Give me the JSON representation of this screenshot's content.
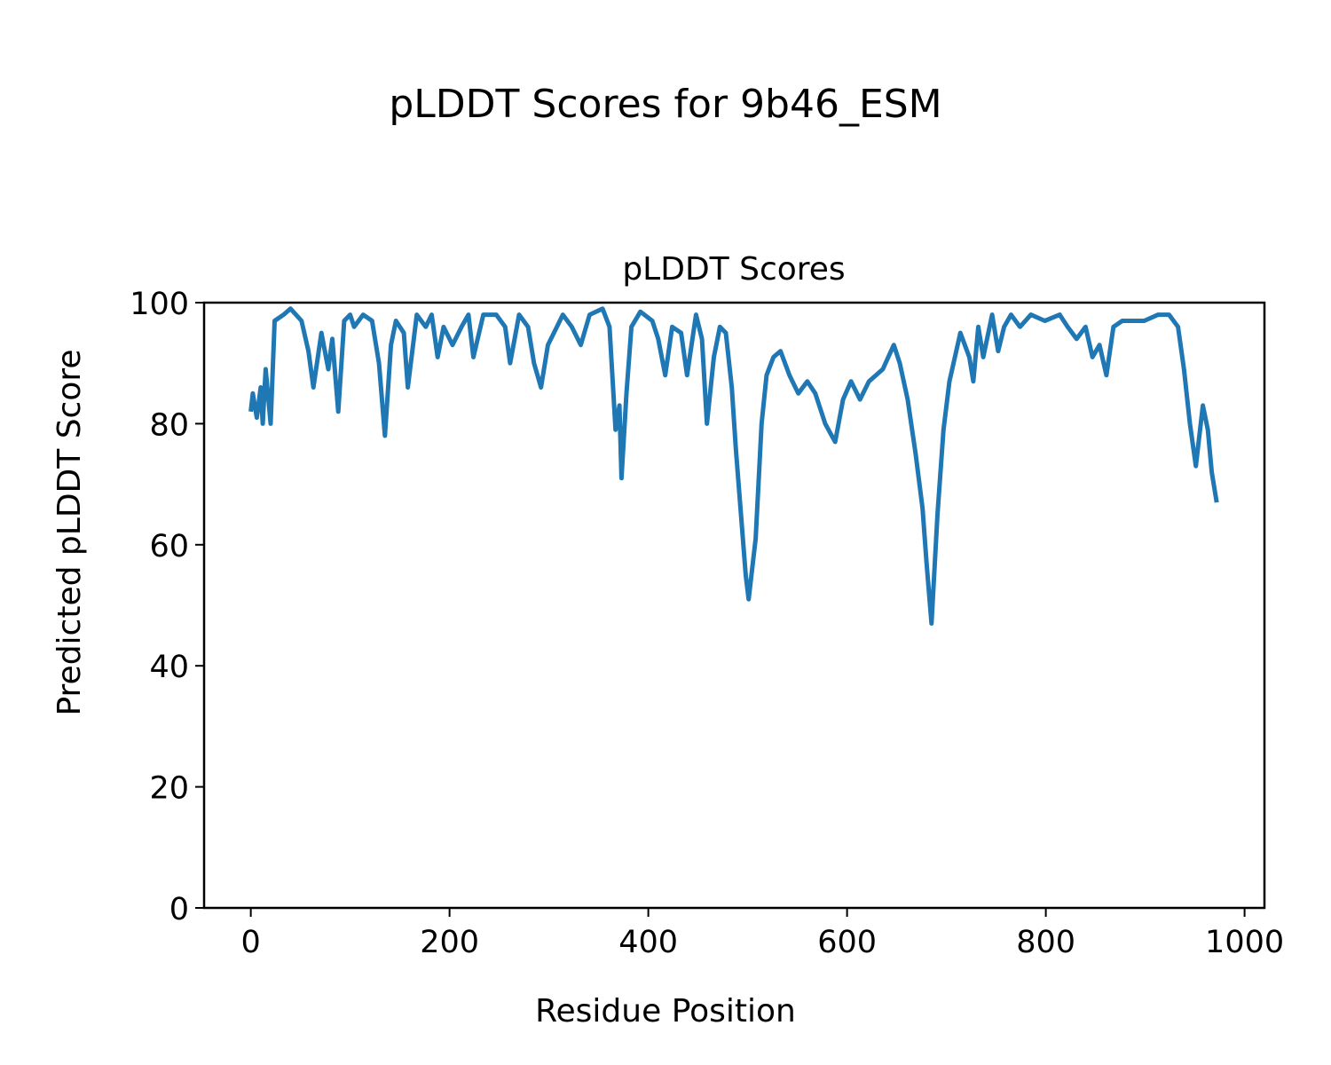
{
  "figure_title": "pLDDT Scores for 9b46_ESM",
  "chart_data": {
    "type": "line",
    "title": "pLDDT Scores",
    "xlabel": "Residue Position",
    "ylabel": "Predicted pLDDT Score",
    "xlim": [
      -47,
      1020
    ],
    "ylim": [
      0,
      100
    ],
    "xticks": [
      0,
      200,
      400,
      600,
      800,
      1000
    ],
    "yticks": [
      0,
      20,
      40,
      60,
      80,
      100
    ],
    "grid": false,
    "series": [
      {
        "name": "pLDDT",
        "color": "#1f77b4",
        "x": [
          0,
          2,
          6,
          10,
          12,
          15,
          20,
          24,
          33,
          40,
          51,
          58,
          63,
          71,
          78,
          82,
          88,
          94,
          100,
          104,
          113,
          122,
          129,
          135,
          141,
          146,
          154,
          158,
          167,
          176,
          182,
          188,
          194,
          203,
          212,
          219,
          224,
          234,
          247,
          256,
          261,
          270,
          279,
          285,
          292,
          299,
          308,
          314,
          323,
          332,
          341,
          354,
          361,
          367,
          371,
          373,
          378,
          383,
          392,
          404,
          410,
          417,
          424,
          433,
          439,
          448,
          454,
          459,
          466,
          472,
          478,
          484,
          488,
          498,
          501,
          508,
          514,
          519,
          526,
          533,
          542,
          551,
          560,
          568,
          578,
          588,
          596,
          604,
          613,
          622,
          636,
          647,
          653,
          661,
          669,
          676,
          680,
          685,
          691,
          697,
          703,
          714,
          723,
          727,
          732,
          737,
          746,
          752,
          758,
          765,
          774,
          785,
          799,
          814,
          822,
          831,
          840,
          847,
          854,
          861,
          868,
          877,
          886,
          899,
          913,
          924,
          933,
          939,
          945,
          951,
          958,
          963,
          967,
          972
        ],
        "y": [
          82,
          85,
          81,
          86,
          80,
          89,
          80,
          97,
          98,
          99,
          97,
          92,
          86,
          95,
          89,
          94,
          82,
          97,
          98,
          96,
          98,
          97,
          90,
          78,
          93,
          97,
          95,
          86,
          98,
          96,
          98,
          91,
          96,
          93,
          96,
          98,
          91,
          98,
          98,
          96,
          90,
          98,
          96,
          90,
          86,
          93,
          96,
          98,
          96,
          93,
          98,
          99,
          96,
          79,
          83,
          71,
          85,
          96,
          98.5,
          97,
          94,
          88,
          96,
          95,
          88,
          98,
          94,
          80,
          91,
          96,
          95,
          86,
          76,
          55,
          51,
          61,
          80,
          88,
          91,
          92,
          88,
          85,
          87,
          85,
          80,
          77,
          84,
          87,
          84,
          87,
          89,
          93,
          90,
          84,
          75,
          66,
          57,
          47,
          65,
          79,
          87,
          95,
          91,
          87,
          96,
          91,
          98,
          92,
          96,
          98,
          96,
          98,
          97,
          98,
          96,
          94,
          96,
          91,
          93,
          88,
          96,
          97,
          97,
          97,
          98,
          98,
          96,
          89,
          80,
          73,
          83,
          79,
          72,
          67
        ]
      }
    ]
  }
}
